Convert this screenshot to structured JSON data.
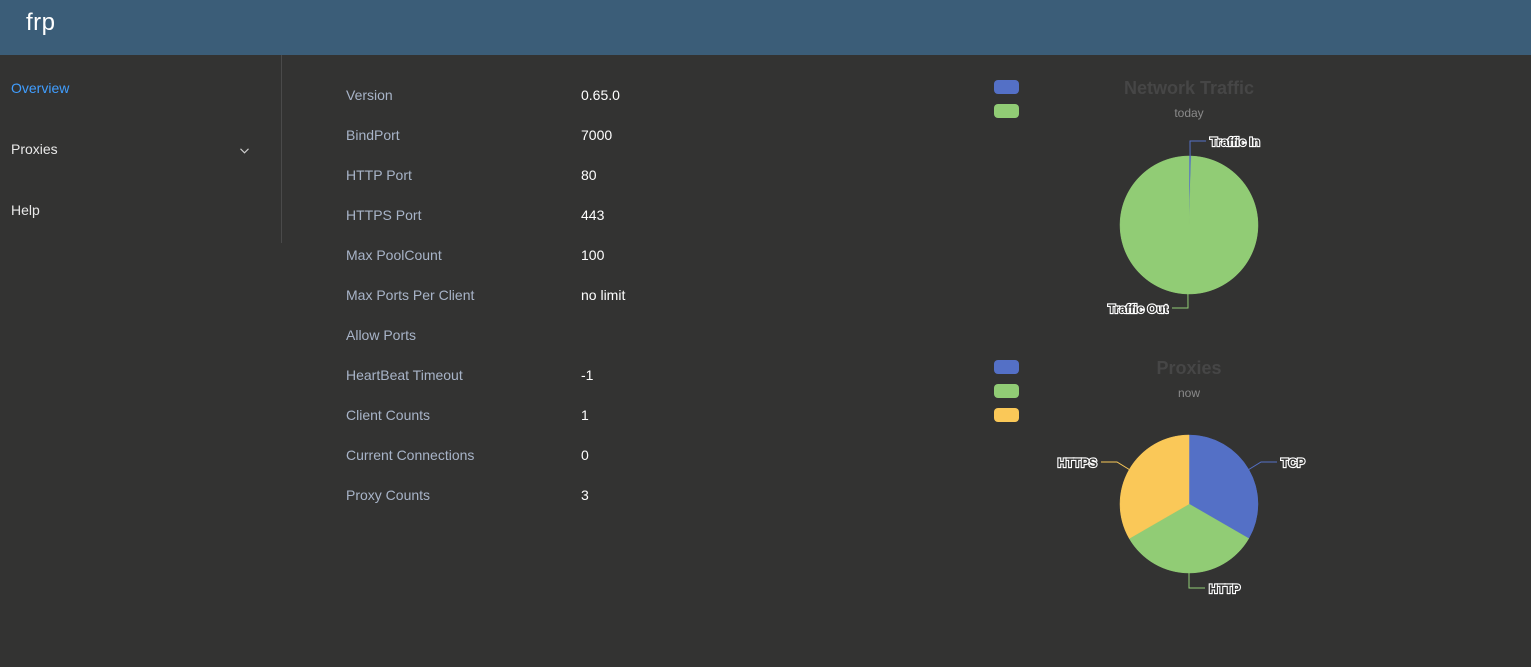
{
  "header": {
    "brand": "frp"
  },
  "sidebar": {
    "items": [
      {
        "label": "Overview"
      },
      {
        "label": "Proxies"
      },
      {
        "label": "Help"
      }
    ]
  },
  "server_info": [
    {
      "label": "Version",
      "value": "0.65.0"
    },
    {
      "label": "BindPort",
      "value": "7000"
    },
    {
      "label": "HTTP Port",
      "value": "80"
    },
    {
      "label": "HTTPS Port",
      "value": "443"
    },
    {
      "label": "Max PoolCount",
      "value": "100"
    },
    {
      "label": "Max Ports Per Client",
      "value": "no limit"
    },
    {
      "label": "Allow Ports",
      "value": ""
    },
    {
      "label": "HeartBeat Timeout",
      "value": "-1"
    },
    {
      "label": "Client Counts",
      "value": "1"
    },
    {
      "label": "Current Connections",
      "value": "0"
    },
    {
      "label": "Proxy Counts",
      "value": "3"
    }
  ],
  "colors": {
    "blue": "#5470c6",
    "green": "#91cc75",
    "yellow": "#fac858",
    "header": "#3b5d78",
    "accent": "#409eff"
  },
  "chart_data": [
    {
      "type": "pie",
      "title": "Network Traffic",
      "subtitle": "today",
      "legend": "top-left",
      "slices": [
        {
          "name": "Traffic In",
          "value": 0.5,
          "color": "#5470c6"
        },
        {
          "name": "Traffic Out",
          "value": 99.5,
          "color": "#91cc75"
        }
      ]
    },
    {
      "type": "pie",
      "title": "Proxies",
      "subtitle": "now",
      "legend": "top-left",
      "slices": [
        {
          "name": "TCP",
          "value": 1,
          "color": "#5470c6"
        },
        {
          "name": "HTTP",
          "value": 1,
          "color": "#91cc75"
        },
        {
          "name": "HTTPS",
          "value": 1,
          "color": "#fac858"
        }
      ]
    }
  ]
}
